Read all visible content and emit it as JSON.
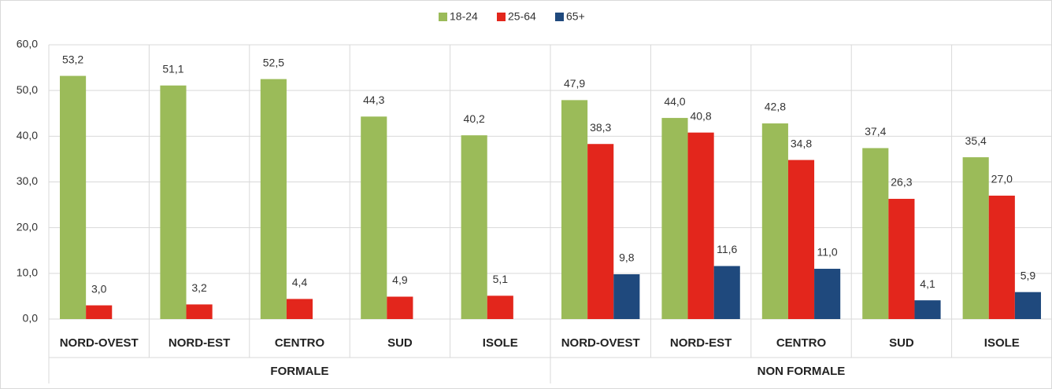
{
  "chart_data": {
    "type": "bar",
    "categories": [
      "NORD-OVEST",
      "NORD-EST",
      "CENTRO",
      "SUD",
      "ISOLE",
      "NORD-OVEST",
      "NORD-EST",
      "CENTRO",
      "SUD",
      "ISOLE"
    ],
    "group_labels": [
      "FORMALE",
      "NON FORMALE"
    ],
    "series": [
      {
        "name": "18-24",
        "color": "#9bbb59",
        "values": [
          53.2,
          51.1,
          52.5,
          44.3,
          40.2,
          47.9,
          44.0,
          42.8,
          37.4,
          35.4
        ],
        "value_labels": [
          "53,2",
          "51,1",
          "52,5",
          "44,3",
          "40,2",
          "47,9",
          "44,0",
          "42,8",
          "37,4",
          "35,4"
        ]
      },
      {
        "name": "25-64",
        "color": "#e3261c",
        "values": [
          3.0,
          3.2,
          4.4,
          4.9,
          5.1,
          38.3,
          40.8,
          34.8,
          26.3,
          27.0
        ],
        "value_labels": [
          "3,0",
          "3,2",
          "4,4",
          "4,9",
          "5,1",
          "38,3",
          "40,8",
          "34,8",
          "26,3",
          "27,0"
        ]
      },
      {
        "name": "65+",
        "color": "#1f497d",
        "values": [
          null,
          null,
          null,
          null,
          null,
          9.8,
          11.6,
          11.0,
          4.1,
          5.9
        ],
        "value_labels": [
          null,
          null,
          null,
          null,
          null,
          "9,8",
          "11,6",
          "11,0",
          "4,1",
          "5,9"
        ]
      }
    ],
    "ylim": [
      0,
      60
    ],
    "yticks": [
      {
        "value": 0,
        "label": "0,0"
      },
      {
        "value": 10,
        "label": "10,0"
      },
      {
        "value": 20,
        "label": "20,0"
      },
      {
        "value": 30,
        "label": "30,0"
      },
      {
        "value": 40,
        "label": "40,0"
      },
      {
        "value": 50,
        "label": "50,0"
      },
      {
        "value": 60,
        "label": "60,0"
      }
    ],
    "grid": true,
    "legend": "top"
  }
}
